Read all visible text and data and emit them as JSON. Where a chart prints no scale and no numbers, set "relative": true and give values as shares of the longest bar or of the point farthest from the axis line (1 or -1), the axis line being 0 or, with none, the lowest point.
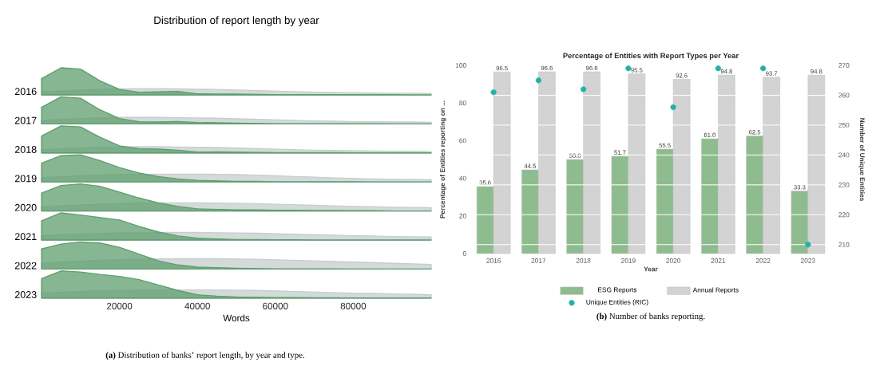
{
  "chart_data": [
    {
      "type": "area",
      "relative": true,
      "title": "Distribution of report length by year",
      "ylabel": "2016",
      "categories": [
        null,
        null,
        null,
        null,
        null,
        null,
        null,
        null,
        null,
        null,
        null,
        null,
        null,
        null,
        null,
        null,
        null,
        null,
        null,
        null,
        null
      ],
      "series": [
        {
          "color": "#c5cece",
          "values": [
            0.12,
            0.14,
            0.17,
            0.2,
            0.22,
            0.23,
            0.23,
            0.22,
            0.21,
            0.2,
            0.18,
            0.16,
            0.14,
            0.12,
            0.1,
            0.09,
            0.08,
            0.07,
            0.06,
            0.06,
            0.05
          ]
        },
        {
          "color": "#5e9e6e",
          "values": [
            0.6,
            1.0,
            0.95,
            0.52,
            0.2,
            0.1,
            0.11,
            0.13,
            0.04,
            0.03,
            0.03,
            0.02,
            0.01,
            0.01,
            0.01,
            0.01,
            0.01,
            0.01,
            0.01,
            0.0,
            0.0
          ]
        }
      ]
    },
    {
      "type": "area",
      "relative": true,
      "ylabel": "2017",
      "categories": [
        null,
        null,
        null,
        null,
        null,
        null,
        null,
        null,
        null,
        null,
        null,
        null,
        null,
        null,
        null,
        null,
        null,
        null,
        null,
        null,
        null
      ],
      "series": [
        {
          "color": "#c5cece",
          "values": [
            0.13,
            0.16,
            0.2,
            0.22,
            0.24,
            0.24,
            0.24,
            0.23,
            0.22,
            0.21,
            0.19,
            0.17,
            0.15,
            0.13,
            0.11,
            0.1,
            0.08,
            0.08,
            0.07,
            0.07,
            0.06
          ]
        },
        {
          "color": "#5e9e6e",
          "values": [
            0.61,
            1.0,
            0.95,
            0.52,
            0.2,
            0.08,
            0.07,
            0.09,
            0.05,
            0.04,
            0.03,
            0.02,
            0.01,
            0.01,
            0.01,
            0.01,
            0.01,
            0.01,
            0.0,
            0.0,
            0.0
          ]
        }
      ]
    },
    {
      "type": "area",
      "relative": true,
      "ylabel": "2018",
      "categories": [
        null,
        null,
        null,
        null,
        null,
        null,
        null,
        null,
        null,
        null,
        null,
        null,
        null,
        null,
        null,
        null,
        null,
        null,
        null,
        null,
        null
      ],
      "series": [
        {
          "color": "#c5cece",
          "values": [
            0.12,
            0.15,
            0.18,
            0.21,
            0.22,
            0.23,
            0.23,
            0.22,
            0.21,
            0.2,
            0.18,
            0.16,
            0.14,
            0.12,
            0.1,
            0.09,
            0.08,
            0.07,
            0.06,
            0.06,
            0.05
          ]
        },
        {
          "color": "#5e9e6e",
          "values": [
            0.62,
            1.0,
            0.96,
            0.58,
            0.26,
            0.16,
            0.14,
            0.1,
            0.03,
            0.04,
            0.03,
            0.02,
            0.01,
            0.01,
            0.01,
            0.01,
            0.0,
            0.0,
            0.0,
            0.0,
            0.0
          ]
        }
      ]
    },
    {
      "type": "area",
      "relative": true,
      "ylabel": "2019",
      "categories": [
        null,
        null,
        null,
        null,
        null,
        null,
        null,
        null,
        null,
        null,
        null,
        null,
        null,
        null,
        null,
        null,
        null,
        null,
        null,
        null,
        null
      ],
      "series": [
        {
          "color": "#c5cece",
          "values": [
            0.16,
            0.19,
            0.22,
            0.25,
            0.27,
            0.28,
            0.29,
            0.29,
            0.29,
            0.28,
            0.27,
            0.25,
            0.23,
            0.2,
            0.18,
            0.15,
            0.13,
            0.11,
            0.1,
            0.09,
            0.08
          ]
        },
        {
          "color": "#5e9e6e",
          "values": [
            0.69,
            0.97,
            1.0,
            0.79,
            0.53,
            0.33,
            0.2,
            0.11,
            0.06,
            0.04,
            0.02,
            0.02,
            0.01,
            0.01,
            0.01,
            0.01,
            0.01,
            0.0,
            0.0,
            0.0,
            0.0
          ]
        }
      ]
    },
    {
      "type": "area",
      "relative": true,
      "ylabel": "2020",
      "categories": [
        null,
        null,
        null,
        null,
        null,
        null,
        null,
        null,
        null,
        null,
        null,
        null,
        null,
        null,
        null,
        null,
        null,
        null,
        null,
        null,
        null
      ],
      "series": [
        {
          "color": "#c5cece",
          "values": [
            0.16,
            0.19,
            0.22,
            0.25,
            0.27,
            0.29,
            0.3,
            0.3,
            0.3,
            0.29,
            0.28,
            0.27,
            0.25,
            0.23,
            0.21,
            0.19,
            0.17,
            0.16,
            0.14,
            0.13,
            0.12
          ]
        },
        {
          "color": "#5e9e6e",
          "values": [
            0.66,
            0.94,
            1.0,
            0.91,
            0.7,
            0.48,
            0.3,
            0.17,
            0.08,
            0.06,
            0.04,
            0.04,
            0.03,
            0.03,
            0.02,
            0.02,
            0.01,
            0.01,
            0.0,
            0.0,
            0.0
          ]
        }
      ]
    },
    {
      "type": "area",
      "relative": true,
      "ylabel": "2021",
      "categories": [
        null,
        null,
        null,
        null,
        null,
        null,
        null,
        null,
        null,
        null,
        null,
        null,
        null,
        null,
        null,
        null,
        null,
        null,
        null,
        null,
        null
      ],
      "series": [
        {
          "color": "#c5cece",
          "values": [
            0.16,
            0.19,
            0.21,
            0.24,
            0.26,
            0.27,
            0.28,
            0.28,
            0.28,
            0.27,
            0.26,
            0.25,
            0.23,
            0.21,
            0.19,
            0.18,
            0.16,
            0.15,
            0.13,
            0.12,
            0.11
          ]
        },
        {
          "color": "#5e9e6e",
          "values": [
            0.71,
            1.0,
            0.92,
            0.83,
            0.74,
            0.5,
            0.3,
            0.15,
            0.07,
            0.04,
            0.02,
            0.02,
            0.01,
            0.01,
            0.0,
            0.0,
            0.0,
            0.0,
            0.0,
            0.0,
            0.0
          ]
        }
      ]
    },
    {
      "type": "area",
      "relative": true,
      "ylabel": "2022",
      "categories": [
        null,
        null,
        null,
        null,
        null,
        null,
        null,
        null,
        null,
        null,
        null,
        null,
        null,
        null,
        null,
        null,
        null,
        null,
        null,
        null,
        null
      ],
      "series": [
        {
          "color": "#c5cece",
          "values": [
            0.22,
            0.26,
            0.29,
            0.32,
            0.34,
            0.36,
            0.37,
            0.38,
            0.38,
            0.38,
            0.37,
            0.36,
            0.34,
            0.32,
            0.3,
            0.28,
            0.26,
            0.24,
            0.21,
            0.19,
            0.17
          ]
        },
        {
          "color": "#5e9e6e",
          "values": [
            0.74,
            0.92,
            1.0,
            0.96,
            0.8,
            0.55,
            0.3,
            0.15,
            0.07,
            0.05,
            0.03,
            0.02,
            0.01,
            0.01,
            0.01,
            0.01,
            0.0,
            0.0,
            0.0,
            0.0,
            0.0
          ]
        }
      ]
    },
    {
      "type": "area",
      "relative": true,
      "ylabel": "2023",
      "xlabel": "Words",
      "xlim": [
        0,
        100000
      ],
      "xticks": [
        20000,
        40000,
        60000,
        80000
      ],
      "annotations": [
        "**(a)** Distribution of banks’ report length, by year and type."
      ],
      "x": [
        0,
        5000,
        10000,
        15000,
        20000,
        25000,
        30000,
        35000,
        40000,
        45000,
        50000,
        55000,
        60000,
        65000,
        70000,
        75000,
        80000,
        85000,
        90000,
        95000,
        100000
      ],
      "series": [
        {
          "color": "#c5cece",
          "values": [
            0.18,
            0.21,
            0.24,
            0.27,
            0.28,
            0.29,
            0.3,
            0.3,
            0.3,
            0.3,
            0.29,
            0.28,
            0.26,
            0.24,
            0.22,
            0.2,
            0.18,
            0.17,
            0.15,
            0.14,
            0.12
          ]
        },
        {
          "color": "#5e9e6e",
          "values": [
            0.72,
            1.0,
            0.96,
            0.87,
            0.8,
            0.68,
            0.48,
            0.28,
            0.12,
            0.07,
            0.04,
            0.03,
            0.02,
            0.02,
            0.01,
            0.01,
            0.0,
            0.0,
            0.0,
            0.0,
            0.0
          ]
        }
      ]
    },
    {
      "type": "bar",
      "title": "Percentage of Entities with Report Types per Year",
      "xlabel": "Year",
      "ylabel": "Percentage of Entities reporting on ...",
      "y2label": "Number of Unique Entities",
      "categories": [
        "2016",
        "2017",
        "2018",
        "2019",
        "2020",
        "2021",
        "2022",
        "2023"
      ],
      "ylim": [
        0,
        100
      ],
      "yticks": [
        0,
        20,
        40,
        60,
        80,
        100
      ],
      "y2lim": [
        207,
        270
      ],
      "y2ticks": [
        210,
        220,
        230,
        240,
        250,
        260,
        270
      ],
      "grid": true,
      "legend": "bottom",
      "annotations": [
        "**(b)** Number of banks reporting."
      ],
      "series": [
        {
          "name": "ESG Reports",
          "color": "#8fbc8f",
          "values": [
            35.6,
            44.5,
            50.0,
            51.7,
            55.5,
            61.0,
            62.5,
            33.3
          ],
          "value_labels": [
            "35.6",
            "44.5",
            "50.0",
            "51.7",
            "55.5",
            "61.0",
            "62.5",
            "33.3"
          ]
        },
        {
          "name": "Annual Reports",
          "color": "#d3d3d3",
          "values": [
            96.5,
            96.6,
            96.6,
            95.5,
            92.6,
            94.8,
            93.7,
            94.8
          ],
          "value_labels": [
            "96.5",
            "96.6",
            "96.6",
            "95.5",
            "92.6",
            "94.8",
            "93.7",
            "94.8"
          ]
        },
        {
          "name": "Unique Entities (RIC)",
          "type": "scatter",
          "axis": "y2",
          "color": "#20b2aa",
          "values": [
            261,
            265,
            262,
            269,
            256,
            269,
            269,
            210
          ]
        }
      ]
    }
  ]
}
